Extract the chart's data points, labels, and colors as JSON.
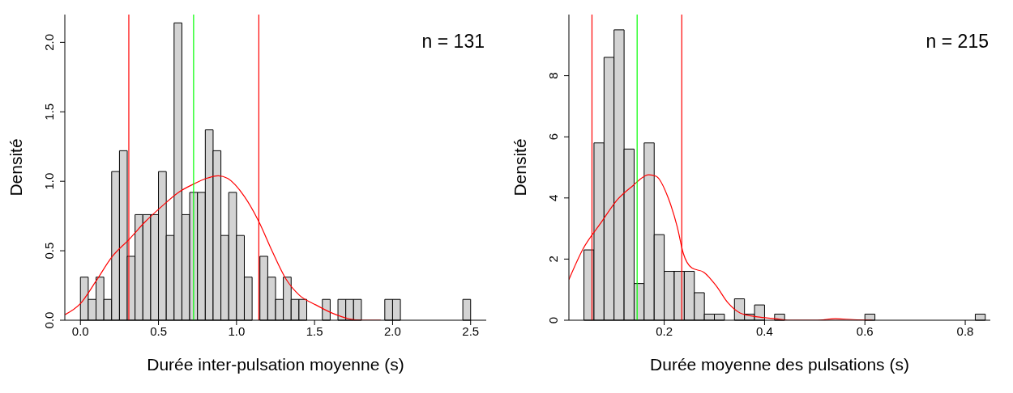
{
  "chart_data": [
    {
      "type": "histogram",
      "xlabel": "Durée inter-pulsation moyenne (s)",
      "ylabel": "Densité",
      "annotations": [
        "n = 131"
      ],
      "color": "#d3d3d3",
      "bins": [
        0,
        0.05,
        0.1,
        0.15,
        0.2,
        0.25,
        0.3,
        0.35,
        0.4,
        0.45,
        0.5,
        0.55,
        0.6,
        0.65,
        0.7,
        0.75,
        0.8,
        0.85,
        0.9,
        0.95,
        1.0,
        1.05,
        1.1,
        1.15,
        1.2,
        1.25,
        1.3,
        1.35,
        1.4,
        1.45,
        1.5,
        1.55,
        1.6,
        1.65,
        1.7,
        1.75,
        1.8,
        1.85,
        1.9,
        1.95,
        2.0,
        2.05,
        2.1,
        2.15,
        2.2,
        2.25,
        2.3,
        2.35,
        2.4,
        2.45,
        2.5
      ],
      "values": [
        0.31,
        0.15,
        0.31,
        0.15,
        1.07,
        1.22,
        0.46,
        0.76,
        0.76,
        0.76,
        1.07,
        0.61,
        2.14,
        0.76,
        0.92,
        0.92,
        1.37,
        1.22,
        0.61,
        0.92,
        0.61,
        0.31,
        0,
        0.46,
        0.31,
        0.15,
        0.31,
        0.15,
        0.15,
        0,
        0,
        0.15,
        0,
        0.15,
        0.15,
        0.15,
        0,
        0,
        0,
        0.15,
        0.15,
        0,
        0,
        0,
        0,
        0,
        0,
        0,
        0,
        0.15
      ],
      "series": [
        {
          "type": "line",
          "color": "#ff0000",
          "x": [
            -0.099,
            0,
            0.099,
            0.205,
            0.31,
            0.416,
            0.522,
            0.628,
            0.725,
            0.804,
            0.883,
            0.945,
            1.051,
            1.143,
            1.227,
            1.315,
            1.403,
            1.509,
            1.615,
            1.721,
            1.8,
            1.924
          ],
          "values": [
            0.04,
            0.12,
            0.28,
            0.46,
            0.58,
            0.71,
            0.82,
            0.92,
            0.98,
            1.02,
            1.04,
            1.02,
            0.89,
            0.71,
            0.5,
            0.3,
            0.18,
            0.11,
            0.05,
            0.01,
            0,
            0
          ]
        }
      ],
      "ref_lines": [
        {
          "axis": "x",
          "value": 0.31,
          "color": "#ff0000"
        },
        {
          "axis": "x",
          "value": 0.725,
          "color": "#00ff00"
        },
        {
          "axis": "x",
          "value": 1.143,
          "color": "#ff0000"
        }
      ],
      "xlim": [
        -0.1,
        2.6
      ],
      "xticks": [
        {
          "value": 0,
          "label": "0.0"
        },
        {
          "value": 0.5,
          "label": "0.5"
        },
        {
          "value": 1,
          "label": "1.0"
        },
        {
          "value": 1.5,
          "label": "1.5"
        },
        {
          "value": 2,
          "label": "2.0"
        },
        {
          "value": 2.5,
          "label": "2.5"
        }
      ],
      "ylim": [
        0,
        2.2
      ],
      "yticks": [
        {
          "value": 0,
          "label": "0.0"
        },
        {
          "value": 0.5,
          "label": "0.5"
        },
        {
          "value": 1,
          "label": "1.0"
        },
        {
          "value": 1.5,
          "label": "1.5"
        },
        {
          "value": 2,
          "label": "2.0"
        }
      ],
      "grid": false,
      "legend": false
    },
    {
      "type": "histogram",
      "xlabel": "Durée moyenne des pulsations (s)",
      "ylabel": "Densité",
      "annotations": [
        "n = 215"
      ],
      "color": "#d3d3d3",
      "bins": [
        0.04,
        0.06,
        0.08,
        0.1,
        0.12,
        0.14,
        0.16,
        0.18,
        0.2,
        0.22,
        0.24,
        0.26,
        0.28,
        0.3,
        0.32,
        0.34,
        0.36,
        0.38,
        0.4,
        0.42,
        0.44,
        0.46,
        0.48,
        0.5,
        0.52,
        0.54,
        0.56,
        0.58,
        0.6,
        0.62,
        0.64,
        0.66,
        0.68,
        0.7,
        0.72,
        0.74,
        0.76,
        0.78,
        0.8,
        0.82,
        0.84
      ],
      "values": [
        2.3,
        5.8,
        8.6,
        9.5,
        5.6,
        1.2,
        5.8,
        2.8,
        1.6,
        1.6,
        1.6,
        0.9,
        0.2,
        0.2,
        0,
        0.7,
        0.2,
        0.5,
        0,
        0.2,
        0,
        0,
        0,
        0,
        0,
        0,
        0,
        0,
        0.2,
        0,
        0,
        0,
        0,
        0,
        0,
        0,
        0,
        0,
        0,
        0.2
      ],
      "series": [
        {
          "type": "line",
          "color": "#ff0000",
          "x": [
            0.01,
            0.038,
            0.074,
            0.107,
            0.136,
            0.169,
            0.184,
            0.208,
            0.226,
            0.238,
            0.255,
            0.279,
            0.303,
            0.327,
            0.351,
            0.386,
            0.422,
            0.446,
            0.505,
            0.541,
            0.577,
            0.615
          ],
          "values": [
            1.33,
            2.33,
            3.19,
            3.95,
            4.38,
            4.76,
            4.71,
            4.0,
            3.05,
            2.19,
            1.71,
            1.57,
            1.14,
            0.57,
            0.24,
            0.11,
            0.05,
            0,
            0,
            0.05,
            0.02,
            0
          ]
        }
      ],
      "ref_lines": [
        {
          "axis": "x",
          "value": 0.056,
          "color": "#ff0000"
        },
        {
          "axis": "x",
          "value": 0.146,
          "color": "#00ff00"
        },
        {
          "axis": "x",
          "value": 0.235,
          "color": "#ff0000"
        }
      ],
      "xlim": [
        0.01,
        0.85
      ],
      "xticks": [
        0.2,
        0.4,
        0.6,
        0.8
      ],
      "ylim": [
        0,
        10
      ],
      "yticks": [
        0,
        2,
        4,
        6,
        8
      ],
      "grid": false,
      "legend": false
    }
  ]
}
